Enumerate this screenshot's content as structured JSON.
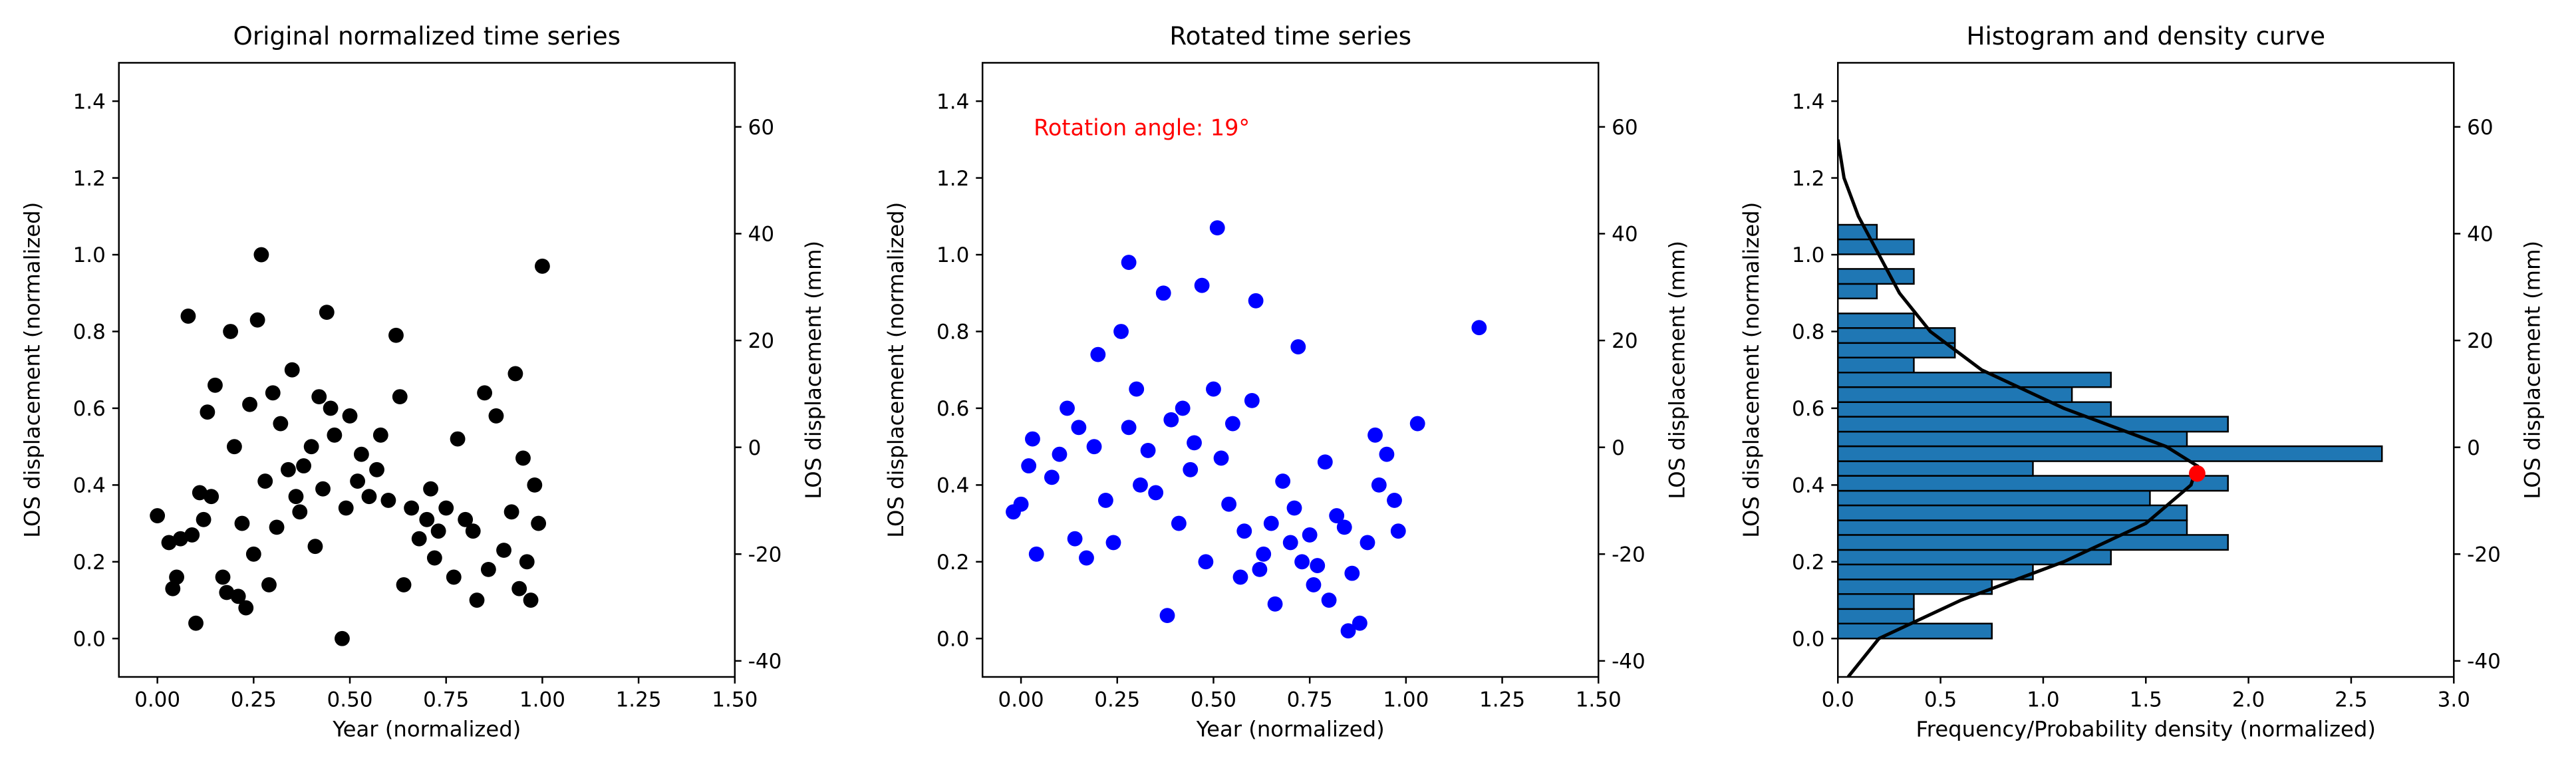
{
  "chart_data": [
    {
      "type": "scatter",
      "title": "Original normalized time series",
      "xlabel": "Year (normalized)",
      "ylabel": "LOS displacement (normalized)",
      "y2label": "LOS displacement (mm)",
      "color": "#000000",
      "x": [
        0.0,
        0.03,
        0.04,
        0.05,
        0.06,
        0.08,
        0.09,
        0.1,
        0.11,
        0.12,
        0.13,
        0.14,
        0.15,
        0.17,
        0.18,
        0.19,
        0.2,
        0.21,
        0.22,
        0.23,
        0.24,
        0.25,
        0.26,
        0.27,
        0.28,
        0.29,
        0.3,
        0.31,
        0.32,
        0.34,
        0.35,
        0.36,
        0.37,
        0.38,
        0.4,
        0.41,
        0.42,
        0.43,
        0.44,
        0.45,
        0.46,
        0.48,
        0.49,
        0.5,
        0.52,
        0.53,
        0.55,
        0.57,
        0.58,
        0.6,
        0.62,
        0.63,
        0.64,
        0.66,
        0.68,
        0.7,
        0.71,
        0.72,
        0.73,
        0.75,
        0.77,
        0.78,
        0.8,
        0.82,
        0.83,
        0.85,
        0.86,
        0.88,
        0.9,
        0.92,
        0.93,
        0.94,
        0.95,
        0.96,
        0.97,
        0.98,
        0.99,
        1.0
      ],
      "values": [
        0.32,
        0.25,
        0.13,
        0.16,
        0.26,
        0.84,
        0.27,
        0.04,
        0.38,
        0.31,
        0.59,
        0.37,
        0.66,
        0.16,
        0.12,
        0.8,
        0.5,
        0.11,
        0.3,
        0.08,
        0.61,
        0.22,
        0.83,
        1.0,
        0.41,
        0.14,
        0.64,
        0.29,
        0.56,
        0.44,
        0.7,
        0.37,
        0.33,
        0.45,
        0.5,
        0.24,
        0.63,
        0.39,
        0.85,
        0.6,
        0.53,
        0.0,
        0.34,
        0.58,
        0.41,
        0.48,
        0.37,
        0.44,
        0.53,
        0.36,
        0.79,
        0.63,
        0.14,
        0.34,
        0.26,
        0.31,
        0.39,
        0.21,
        0.28,
        0.34,
        0.16,
        0.52,
        0.31,
        0.28,
        0.1,
        0.64,
        0.18,
        0.58,
        0.23,
        0.33,
        0.69,
        0.13,
        0.47,
        0.2,
        0.1,
        0.4,
        0.3,
        0.97
      ],
      "xlim": [
        -0.1,
        1.5
      ],
      "xticks": [
        {
          "value": 0,
          "label": "0.00"
        },
        {
          "value": 0.25,
          "label": "0.25"
        },
        {
          "value": 0.5,
          "label": "0.50"
        },
        {
          "value": 0.75,
          "label": "0.75"
        },
        {
          "value": 1,
          "label": "1.00"
        },
        {
          "value": 1.25,
          "label": "1.25"
        },
        {
          "value": 1.5,
          "label": "1.50"
        }
      ],
      "ylim": [
        -0.1,
        1.5
      ],
      "yticks": [
        {
          "value": 0,
          "label": "0.0"
        },
        0.2,
        0.4,
        0.6,
        0.8,
        {
          "value": 1,
          "label": "1.0"
        },
        1.2,
        1.4
      ],
      "y2lim": [
        -43,
        72
      ],
      "y2ticks": [
        -40,
        -20,
        0,
        20,
        40,
        60
      ]
    },
    {
      "type": "scatter",
      "title": "Rotated time series",
      "xlabel": "Year (normalized)",
      "ylabel": "LOS displacement (normalized)",
      "y2label": "LOS displacement (mm)",
      "color": "#0000ff",
      "annotation": "Rotation angle: 19°",
      "annotation_color": "#ff0000",
      "x": [
        -0.02,
        0.0,
        0.02,
        0.03,
        0.04,
        0.08,
        0.1,
        0.12,
        0.14,
        0.15,
        0.17,
        0.19,
        0.2,
        0.22,
        0.24,
        0.26,
        0.28,
        0.28,
        0.3,
        0.31,
        0.33,
        0.35,
        0.37,
        0.38,
        0.39,
        0.41,
        0.42,
        0.44,
        0.45,
        0.47,
        0.48,
        0.5,
        0.51,
        0.52,
        0.54,
        0.55,
        0.57,
        0.58,
        0.6,
        0.61,
        0.62,
        0.63,
        0.65,
        0.66,
        0.68,
        0.7,
        0.71,
        0.72,
        0.73,
        0.75,
        0.76,
        0.77,
        0.79,
        0.8,
        0.82,
        0.84,
        0.85,
        0.86,
        0.88,
        0.9,
        0.92,
        0.93,
        0.95,
        0.97,
        0.98,
        1.03,
        1.19
      ],
      "values": [
        0.33,
        0.35,
        0.45,
        0.52,
        0.22,
        0.42,
        0.48,
        0.6,
        0.26,
        0.55,
        0.21,
        0.5,
        0.74,
        0.36,
        0.25,
        0.8,
        0.98,
        0.55,
        0.65,
        0.4,
        0.49,
        0.38,
        0.9,
        0.06,
        0.57,
        0.3,
        0.6,
        0.44,
        0.51,
        0.92,
        0.2,
        0.65,
        1.07,
        0.47,
        0.35,
        0.56,
        0.16,
        0.28,
        0.62,
        0.88,
        0.18,
        0.22,
        0.3,
        0.09,
        0.41,
        0.25,
        0.34,
        0.76,
        0.2,
        0.27,
        0.14,
        0.19,
        0.46,
        0.1,
        0.32,
        0.29,
        0.02,
        0.17,
        0.04,
        0.25,
        0.53,
        0.4,
        0.48,
        0.36,
        0.28,
        0.56,
        0.81
      ],
      "xlim": [
        -0.1,
        1.5
      ],
      "xticks": [
        {
          "value": 0,
          "label": "0.00"
        },
        {
          "value": 0.25,
          "label": "0.25"
        },
        {
          "value": 0.5,
          "label": "0.50"
        },
        {
          "value": 0.75,
          "label": "0.75"
        },
        {
          "value": 1,
          "label": "1.00"
        },
        {
          "value": 1.25,
          "label": "1.25"
        },
        {
          "value": 1.5,
          "label": "1.50"
        }
      ],
      "ylim": [
        -0.1,
        1.5
      ],
      "yticks": [
        {
          "value": 0,
          "label": "0.0"
        },
        0.2,
        0.4,
        0.6,
        0.8,
        {
          "value": 1,
          "label": "1.0"
        },
        1.2,
        1.4
      ],
      "y2lim": [
        -43,
        72
      ],
      "y2ticks": [
        -40,
        -20,
        0,
        20,
        40,
        60
      ]
    },
    {
      "type": "histogram",
      "orientation": "horizontal",
      "title": "Histogram and density curve",
      "xlabel": "Frequency/Probability density (normalized)",
      "ylabel": "LOS displacement (normalized)",
      "y2label": "LOS displacement (mm)",
      "color": "#1f77b4",
      "bins": [
        0,
        0.039,
        0.077,
        0.116,
        0.154,
        0.193,
        0.231,
        0.27,
        0.308,
        0.347,
        0.385,
        0.424,
        0.462,
        0.501,
        0.539,
        0.578,
        0.616,
        0.655,
        0.693,
        0.732,
        0.77,
        0.809,
        0.847,
        0.886,
        0.924,
        0.963,
        1.001,
        1.04,
        1.078
      ],
      "values": [
        0.75,
        0.37,
        0.37,
        0.75,
        0.95,
        1.33,
        1.9,
        1.7,
        1.7,
        1.52,
        1.9,
        0.95,
        2.65,
        1.7,
        1.9,
        1.33,
        1.14,
        1.33,
        0.37,
        0.57,
        0.57,
        0.37,
        0,
        0.19,
        0.37,
        0,
        0.37,
        0.19
      ],
      "curve": {
        "color": "#000000",
        "y": [
          -0.1,
          0.0,
          0.1,
          0.2,
          0.3,
          0.4,
          0.45,
          0.5,
          0.6,
          0.7,
          0.8,
          0.9,
          1.0,
          1.1,
          1.2,
          1.3
        ],
        "density": [
          0.05,
          0.2,
          0.6,
          1.1,
          1.5,
          1.72,
          1.75,
          1.6,
          1.1,
          0.7,
          0.45,
          0.3,
          0.2,
          0.1,
          0.03,
          0.0
        ]
      },
      "marker": {
        "color": "#ff0000",
        "density": 1.75,
        "y": 0.43
      },
      "xlim": [
        0,
        3
      ],
      "xticks": [
        {
          "value": 0,
          "label": "0.0"
        },
        {
          "value": 0.5,
          "label": "0.5"
        },
        {
          "value": 1,
          "label": "1.0"
        },
        {
          "value": 1.5,
          "label": "1.5"
        },
        {
          "value": 2,
          "label": "2.0"
        },
        {
          "value": 2.5,
          "label": "2.5"
        },
        {
          "value": 3,
          "label": "3.0"
        }
      ],
      "ylim": [
        -0.1,
        1.5
      ],
      "yticks": [
        {
          "value": 0,
          "label": "0.0"
        },
        0.2,
        0.4,
        0.6,
        0.8,
        {
          "value": 1,
          "label": "1.0"
        },
        1.2,
        1.4
      ],
      "y2lim": [
        -43,
        72
      ],
      "y2ticks": [
        -40,
        -20,
        0,
        20,
        40,
        60
      ]
    }
  ]
}
